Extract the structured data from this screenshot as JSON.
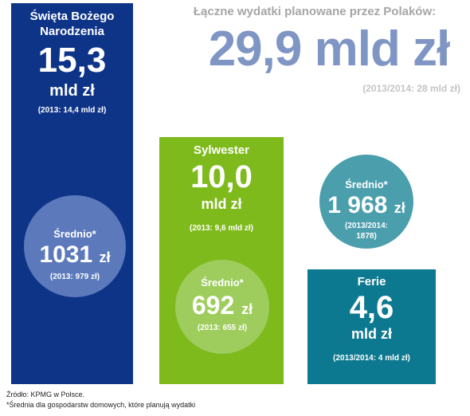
{
  "headline": {
    "label": "Łączne wydatki planowane przez Polaków:",
    "value": "29,9 mld zł",
    "prev": "(2013/2014: 28 mld zł)"
  },
  "colors": {
    "christmas": "#0e3488",
    "christmas_circle": "#5b79bb",
    "newyear": "#7fba1d",
    "newyear_circle": "#9ecd5d",
    "holidays": "#0d7990",
    "avg_circle": "#4b9fad",
    "total": "#7f96c5"
  },
  "chart_data": {
    "type": "bar",
    "title": "Łączne wydatki planowane przez Polaków:",
    "total": "29,9 mld zł",
    "total_prev": "(2013/2014: 28 mld zł)",
    "categories": [
      "Święta Bożego Narodzenia",
      "Sylwester",
      "Ferie"
    ],
    "unit": "mld zł",
    "values": [
      15.3,
      10.0,
      4.6
    ],
    "prev_values": [
      14.4,
      9.6,
      4.0
    ],
    "averages": [
      1031,
      692,
      1968
    ],
    "average_prev": [
      979,
      655,
      1878
    ],
    "ylim": [
      0,
      15.3
    ]
  },
  "bars": [
    {
      "name_line1": "Święta Bożego",
      "name_line2": "Narodzenia",
      "value": "15,3",
      "unit": "mld zł",
      "prev": "(2013: 14,4 mld zł)",
      "avg_label": "Średnio*",
      "avg_value": "1031",
      "avg_unit": "zł",
      "avg_prev": "(2013: 979 zł)"
    },
    {
      "name": "Sylwester",
      "value": "10,0",
      "unit": "mld zł",
      "prev": "(2013: 9,6 mld zł)",
      "avg_label": "Średnio*",
      "avg_value": "692",
      "avg_unit": "zł",
      "avg_prev": "(2013: 655 zł)"
    },
    {
      "name": "Ferie",
      "value": "4,6",
      "unit": "mld zł",
      "prev": "(2013/2014: 4 mld zł)",
      "avg_label": "Średnio*",
      "avg_value": "1 968",
      "avg_unit": "zł",
      "avg_prev_line1": "(2013/2014:",
      "avg_prev_line2": "1878)"
    }
  ],
  "footnotes": {
    "source": "Źródło: KPMG w Polsce.",
    "note": "*Średnia dla gospodarstw domowych, które planują wydatki"
  }
}
